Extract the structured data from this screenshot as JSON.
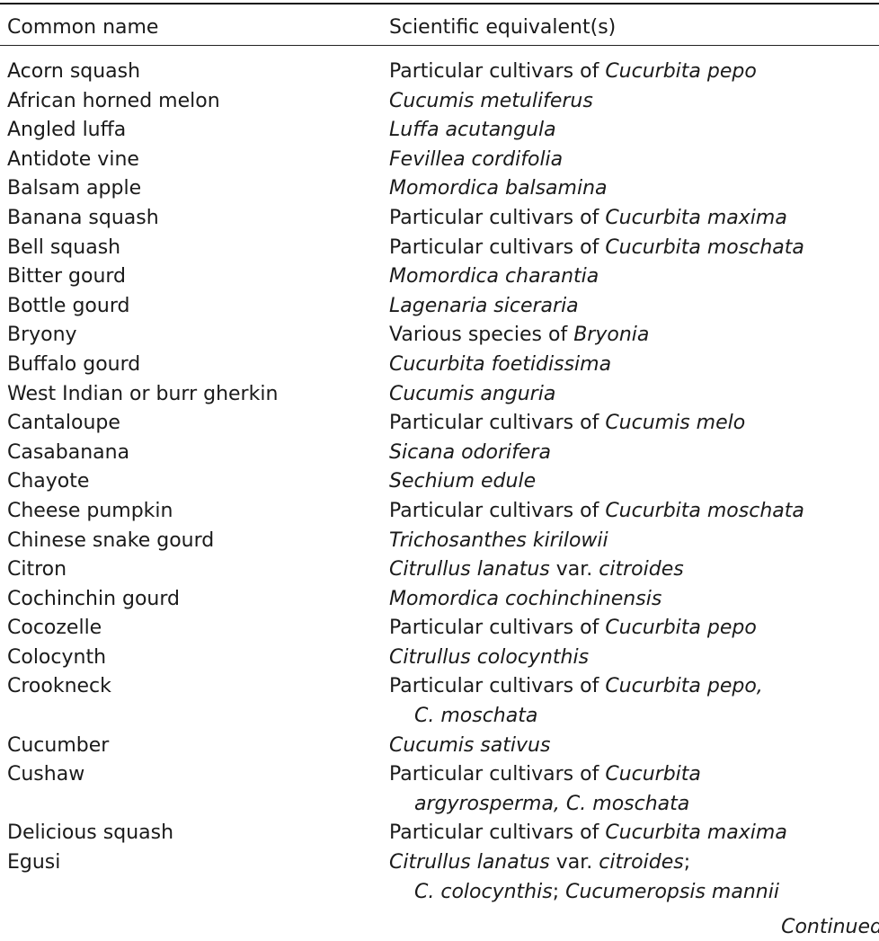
{
  "header": {
    "common": "Common name",
    "scientific": "Scientific equivalent(s)"
  },
  "rows": [
    {
      "name": "Acorn squash",
      "sci": [
        [
          {
            "t": "Particular cultivars of ",
            "i": false
          },
          {
            "t": "Cucurbita pepo",
            "i": true
          }
        ]
      ]
    },
    {
      "name": "African horned melon",
      "sci": [
        [
          {
            "t": "Cucumis metuliferus",
            "i": true
          }
        ]
      ]
    },
    {
      "name": "Angled luffa",
      "sci": [
        [
          {
            "t": "Luffa acutangula",
            "i": true
          }
        ]
      ]
    },
    {
      "name": "Antidote vine",
      "sci": [
        [
          {
            "t": "Fevillea cordifolia",
            "i": true
          }
        ]
      ]
    },
    {
      "name": "Balsam apple",
      "sci": [
        [
          {
            "t": "Momordica balsamina",
            "i": true
          }
        ]
      ]
    },
    {
      "name": "Banana squash",
      "sci": [
        [
          {
            "t": "Particular cultivars of ",
            "i": false
          },
          {
            "t": "Cucurbita maxima",
            "i": true
          }
        ]
      ]
    },
    {
      "name": "Bell squash",
      "sci": [
        [
          {
            "t": "Particular cultivars of ",
            "i": false
          },
          {
            "t": "Cucurbita moschata",
            "i": true
          }
        ]
      ]
    },
    {
      "name": "Bitter gourd",
      "sci": [
        [
          {
            "t": "Momordica charantia",
            "i": true
          }
        ]
      ]
    },
    {
      "name": "Bottle gourd",
      "sci": [
        [
          {
            "t": "Lagenaria siceraria",
            "i": true
          }
        ]
      ]
    },
    {
      "name": "Bryony",
      "sci": [
        [
          {
            "t": "Various species of ",
            "i": false
          },
          {
            "t": "Bryonia",
            "i": true
          }
        ]
      ]
    },
    {
      "name": "Buffalo gourd",
      "sci": [
        [
          {
            "t": "Cucurbita foetidissima",
            "i": true
          }
        ]
      ]
    },
    {
      "name": "West Indian or burr gherkin",
      "sci": [
        [
          {
            "t": "Cucumis anguria",
            "i": true
          }
        ]
      ]
    },
    {
      "name": "Cantaloupe",
      "sci": [
        [
          {
            "t": "Particular cultivars of ",
            "i": false
          },
          {
            "t": "Cucumis melo",
            "i": true
          }
        ]
      ]
    },
    {
      "name": "Casabanana",
      "sci": [
        [
          {
            "t": "Sicana odorifera",
            "i": true
          }
        ]
      ]
    },
    {
      "name": "Chayote",
      "sci": [
        [
          {
            "t": "Sechium edule",
            "i": true
          }
        ]
      ]
    },
    {
      "name": "Cheese pumpkin",
      "sci": [
        [
          {
            "t": "Particular cultivars of ",
            "i": false
          },
          {
            "t": "Cucurbita moschata",
            "i": true
          }
        ]
      ]
    },
    {
      "name": "Chinese snake gourd",
      "sci": [
        [
          {
            "t": "Trichosanthes kirilowii",
            "i": true
          }
        ]
      ]
    },
    {
      "name": "Citron",
      "sci": [
        [
          {
            "t": "Citrullus lanatus",
            "i": true
          },
          {
            "t": " var. ",
            "i": false
          },
          {
            "t": "citroides",
            "i": true
          }
        ]
      ]
    },
    {
      "name": "Cochinchin gourd",
      "sci": [
        [
          {
            "t": "Momordica cochinchinensis",
            "i": true
          }
        ]
      ]
    },
    {
      "name": "Cocozelle",
      "sci": [
        [
          {
            "t": "Particular cultivars of ",
            "i": false
          },
          {
            "t": "Cucurbita pepo",
            "i": true
          }
        ]
      ]
    },
    {
      "name": "Colocynth",
      "sci": [
        [
          {
            "t": "Citrullus colocynthis",
            "i": true
          }
        ]
      ]
    },
    {
      "name": "Crookneck",
      "sci": [
        [
          {
            "t": "Particular cultivars of ",
            "i": false
          },
          {
            "t": "Cucurbita pepo,",
            "i": true
          }
        ],
        [
          {
            "t": "C. moschata",
            "i": true
          }
        ]
      ]
    },
    {
      "name": "Cucumber",
      "sci": [
        [
          {
            "t": "Cucumis sativus",
            "i": true
          }
        ]
      ]
    },
    {
      "name": "Cushaw",
      "sci": [
        [
          {
            "t": "Particular cultivars of ",
            "i": false
          },
          {
            "t": "Cucurbita",
            "i": true
          }
        ],
        [
          {
            "t": "argyrosperma, C. moschata",
            "i": true
          }
        ]
      ]
    },
    {
      "name": "Delicious squash",
      "sci": [
        [
          {
            "t": "Particular cultivars of ",
            "i": false
          },
          {
            "t": "Cucurbita maxima",
            "i": true
          }
        ]
      ]
    },
    {
      "name": "Egusi",
      "sci": [
        [
          {
            "t": "Citrullus lanatus",
            "i": true
          },
          {
            "t": " var. ",
            "i": false
          },
          {
            "t": "citroides",
            "i": true
          },
          {
            "t": ";",
            "i": false
          }
        ],
        [
          {
            "t": "C. colocynthis",
            "i": true
          },
          {
            "t": "; ",
            "i": false
          },
          {
            "t": "Cucumeropsis mannii",
            "i": true
          }
        ]
      ]
    }
  ],
  "footer": {
    "continued": "Continued"
  }
}
